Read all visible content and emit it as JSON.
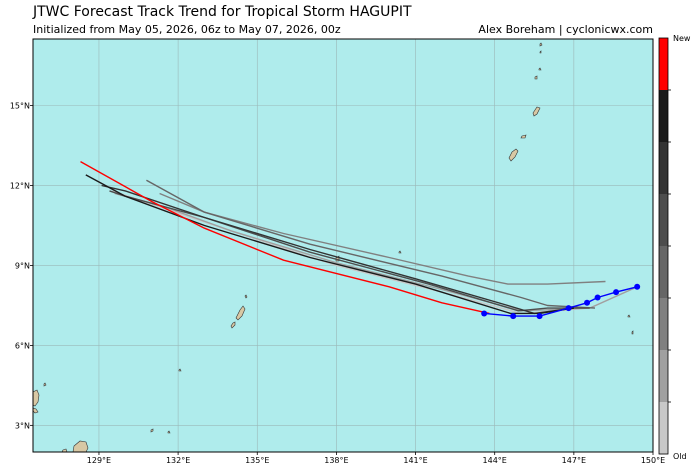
{
  "header": {
    "title": "JTWC Forecast Track Trend for Tropical Storm HAGUPIT",
    "subtitle": "Initialized from May 05, 2026, 06z to May 07, 2026, 00z",
    "credit": "Alex Boreham | cyclonicwx.com"
  },
  "map": {
    "ocean_color": "#afecec",
    "land_color": "#d8c8a4",
    "grid_color": "#9bb8b8",
    "lon_range": [
      126.5,
      150.0
    ],
    "lat_range": [
      2.0,
      17.5
    ],
    "lon_ticks": [
      {
        "value": 129,
        "label": "129°E"
      },
      {
        "value": 132,
        "label": "132°E"
      },
      {
        "value": 135,
        "label": "135°E"
      },
      {
        "value": 138,
        "label": "138°E"
      },
      {
        "value": 141,
        "label": "141°E"
      },
      {
        "value": 144,
        "label": "144°E"
      },
      {
        "value": 147,
        "label": "147°E"
      },
      {
        "value": 150,
        "label": "150°E"
      }
    ],
    "lat_ticks": [
      {
        "value": 3,
        "label": "3°N"
      },
      {
        "value": 6,
        "label": "6°N"
      },
      {
        "value": 9,
        "label": "9°N"
      },
      {
        "value": 12,
        "label": "12°N"
      },
      {
        "value": 15,
        "label": "15°N"
      }
    ]
  },
  "colorbar": {
    "top_label": "New",
    "bottom_label": "Old",
    "segments": [
      "#ff0000",
      "#1a1a1a",
      "#333333",
      "#4d4d4d",
      "#666666",
      "#808080",
      "#a0a0a0",
      "#c8c8c8"
    ]
  },
  "chart_data": {
    "type": "line",
    "title": "JTWC Forecast Track Trend for Tropical Storm HAGUPIT",
    "xlabel": "",
    "ylabel": "",
    "xlim": [
      126.5,
      150.0
    ],
    "ylim": [
      2.0,
      17.5
    ],
    "series": [
      {
        "color": "#c8c8c8",
        "points": [
          [
            149.4,
            8.2
          ],
          [
            147.6,
            7.4
          ],
          [
            145.0,
            7.2
          ],
          [
            142.0,
            8.0
          ],
          [
            138.0,
            9.0
          ],
          [
            134.0,
            10.3
          ],
          [
            131.0,
            11.3
          ],
          [
            129.5,
            11.8
          ]
        ]
      },
      {
        "color": "#a0a0a0",
        "points": [
          [
            149.4,
            8.2
          ],
          [
            147.6,
            7.4
          ],
          [
            145.0,
            7.3
          ],
          [
            142.0,
            8.1
          ],
          [
            138.0,
            9.1
          ],
          [
            134.0,
            10.3
          ],
          [
            131.5,
            11.2
          ],
          [
            129.6,
            11.7
          ]
        ]
      },
      {
        "color": "#808080",
        "points": [
          [
            148.2,
            8.4
          ],
          [
            146.0,
            8.3
          ],
          [
            144.5,
            8.3
          ],
          [
            143.0,
            8.6
          ],
          [
            140.0,
            9.3
          ],
          [
            136.0,
            10.2
          ],
          [
            133.0,
            11.0
          ],
          [
            131.3,
            11.7
          ]
        ]
      },
      {
        "color": "#666666",
        "points": [
          [
            147.8,
            7.4
          ],
          [
            146.0,
            7.5
          ],
          [
            145.0,
            7.8
          ],
          [
            142.0,
            8.6
          ],
          [
            137.0,
            9.8
          ],
          [
            133.0,
            11.0
          ],
          [
            130.8,
            12.2
          ]
        ]
      },
      {
        "color": "#4d4d4d",
        "points": [
          [
            147.6,
            7.4
          ],
          [
            146.0,
            7.4
          ],
          [
            144.9,
            7.3
          ],
          [
            141.5,
            8.3
          ],
          [
            137.0,
            9.5
          ],
          [
            133.0,
            10.8
          ],
          [
            130.0,
            11.6
          ],
          [
            129.4,
            11.8
          ]
        ]
      },
      {
        "color": "#333333",
        "points": [
          [
            147.0,
            7.4
          ],
          [
            145.5,
            7.2
          ],
          [
            144.5,
            7.5
          ],
          [
            141.0,
            8.5
          ],
          [
            137.0,
            9.6
          ],
          [
            133.0,
            10.8
          ],
          [
            130.0,
            11.8
          ],
          [
            129.1,
            12.0
          ]
        ]
      },
      {
        "color": "#1a1a1a",
        "points": [
          [
            147.0,
            7.4
          ],
          [
            145.7,
            7.2
          ],
          [
            144.6,
            7.2
          ],
          [
            141.0,
            8.3
          ],
          [
            137.0,
            9.3
          ],
          [
            133.0,
            10.5
          ],
          [
            130.0,
            11.6
          ],
          [
            128.5,
            12.4
          ]
        ]
      },
      {
        "color": "#ff0000",
        "points": [
          [
            143.8,
            7.2
          ],
          [
            142.0,
            7.6
          ],
          [
            140.0,
            8.2
          ],
          [
            136.0,
            9.2
          ],
          [
            133.0,
            10.4
          ],
          [
            131.0,
            11.4
          ],
          [
            128.3,
            12.9
          ]
        ]
      }
    ],
    "observed_track": {
      "color": "#0000ff",
      "points": [
        [
          149.4,
          8.2
        ],
        [
          148.6,
          8.0
        ],
        [
          147.9,
          7.8
        ],
        [
          147.5,
          7.6
        ],
        [
          146.8,
          7.4
        ],
        [
          145.7,
          7.1
        ],
        [
          144.7,
          7.1
        ],
        [
          143.6,
          7.2
        ]
      ]
    }
  }
}
